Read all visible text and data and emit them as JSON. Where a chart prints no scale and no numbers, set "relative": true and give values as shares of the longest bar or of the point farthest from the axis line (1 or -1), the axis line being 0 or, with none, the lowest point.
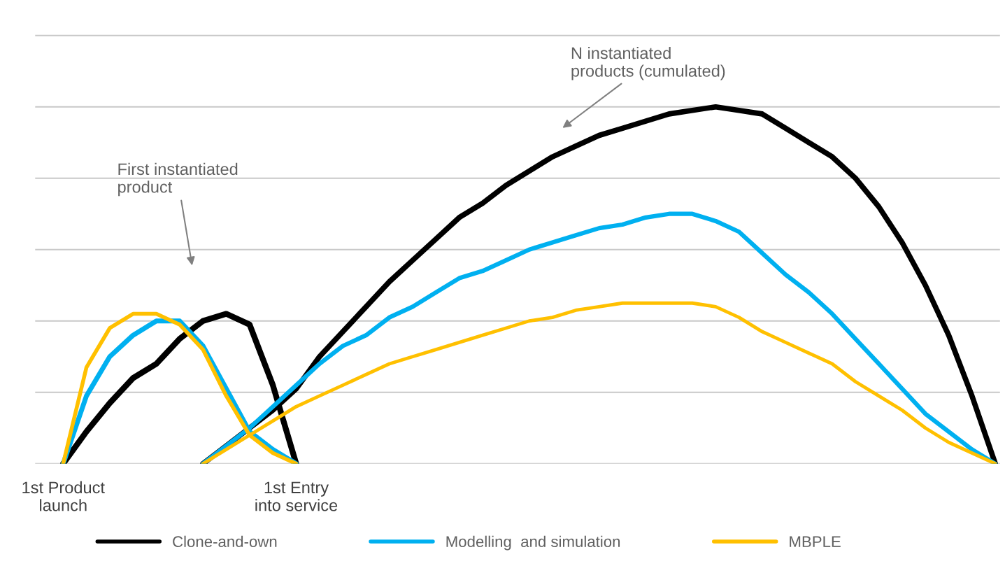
{
  "chart_data": {
    "type": "line",
    "relative": true,
    "grid": "y",
    "legend": "bottom",
    "tick_labels": "x",
    "line_style": "solid",
    "marker": "none",
    "categories": [
      "1st Product\nlaunch",
      null,
      null,
      null,
      null,
      null,
      null,
      null,
      null,
      null,
      "1st Entry\ninto service",
      null,
      null,
      null,
      null,
      null,
      null,
      null,
      null,
      null,
      null,
      null,
      null,
      null,
      null,
      null,
      null,
      null,
      null,
      null,
      null,
      null,
      null,
      null,
      null,
      null,
      null,
      null,
      null,
      null,
      null
    ],
    "annotations": [
      "First instantiated\nproduct",
      "N instantiated\nproducts (cumulated)"
    ],
    "series": [
      {
        "name": "Clone-and-own",
        "color": "#000000",
        "values": [
          0,
          0.09,
          0.17,
          0.24,
          0.28,
          0.35,
          0.4,
          0.42,
          0.39,
          0.22,
          0,
          null,
          null,
          null,
          null,
          null,
          null,
          null,
          null,
          null,
          null,
          null,
          null,
          null,
          null,
          null,
          null,
          null,
          null,
          null,
          null,
          null,
          null,
          null,
          null,
          null,
          null,
          null,
          null,
          null,
          null
        ]
      },
      {
        "color": "#000000",
        "values": [
          null,
          null,
          null,
          null,
          null,
          null,
          0,
          0.05,
          0.1,
          0.15,
          0.21,
          0.3,
          0.37,
          0.44,
          0.51,
          0.57,
          0.63,
          0.69,
          0.73,
          0.78,
          0.82,
          0.86,
          0.89,
          0.92,
          0.94,
          0.96,
          0.98,
          0.99,
          1.0,
          0.99,
          0.98,
          0.94,
          0.9,
          0.86,
          0.8,
          0.72,
          0.62,
          0.5,
          0.36,
          0.19,
          0
        ]
      },
      {
        "name": "Modelling  and simulation",
        "color": "#00b0f0",
        "values": [
          0,
          0.19,
          0.3,
          0.36,
          0.4,
          0.4,
          0.33,
          0.21,
          0.09,
          0.04,
          0,
          null,
          null,
          null,
          null,
          null,
          null,
          null,
          null,
          null,
          null,
          null,
          null,
          null,
          null,
          null,
          null,
          null,
          null,
          null,
          null,
          null,
          null,
          null,
          null,
          null,
          null,
          null,
          null,
          null,
          null
        ]
      },
      {
        "color": "#00b0f0",
        "values": [
          null,
          null,
          null,
          null,
          null,
          null,
          0,
          0.05,
          0.1,
          0.16,
          0.22,
          0.28,
          0.33,
          0.36,
          0.41,
          0.44,
          0.48,
          0.52,
          0.54,
          0.57,
          0.6,
          0.62,
          0.64,
          0.66,
          0.67,
          0.69,
          0.7,
          0.7,
          0.68,
          0.65,
          0.59,
          0.53,
          0.48,
          0.42,
          0.35,
          0.28,
          0.21,
          0.14,
          0.09,
          0.04,
          0
        ]
      },
      {
        "name": "MBPLE",
        "color": "#ffc000",
        "values": [
          0,
          0.27,
          0.38,
          0.42,
          0.42,
          0.39,
          0.32,
          0.19,
          0.08,
          0.03,
          0,
          null,
          null,
          null,
          null,
          null,
          null,
          null,
          null,
          null,
          null,
          null,
          null,
          null,
          null,
          null,
          null,
          null,
          null,
          null,
          null,
          null,
          null,
          null,
          null,
          null,
          null,
          null,
          null,
          null,
          null
        ]
      },
      {
        "color": "#ffc000",
        "values": [
          null,
          null,
          null,
          null,
          null,
          null,
          0,
          0.04,
          0.08,
          0.12,
          0.16,
          0.19,
          0.22,
          0.25,
          0.28,
          0.3,
          0.32,
          0.34,
          0.36,
          0.38,
          0.4,
          0.41,
          0.43,
          0.44,
          0.45,
          0.45,
          0.45,
          0.45,
          0.44,
          0.41,
          0.37,
          0.34,
          0.31,
          0.28,
          0.23,
          0.19,
          0.15,
          0.1,
          0.06,
          0.03,
          0
        ]
      }
    ]
  }
}
